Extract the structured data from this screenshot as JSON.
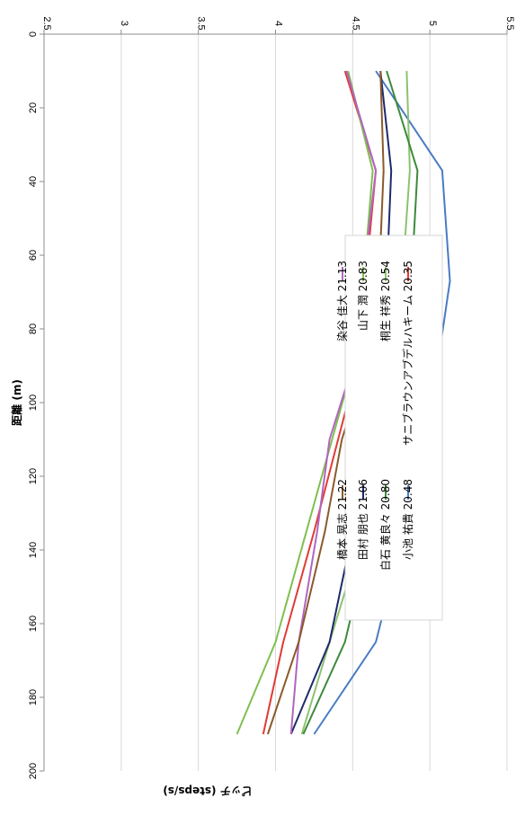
{
  "chart_data": {
    "type": "line",
    "xlabel": "距離 (m)",
    "ylabel": "ピッチ (steps/s)",
    "xlim": [
      0,
      200
    ],
    "ylim": [
      2.5,
      5.5
    ],
    "x_ticks": [
      "0",
      "20",
      "40",
      "60",
      "80",
      "100",
      "120",
      "140",
      "160",
      "180",
      "200"
    ],
    "y_ticks": [
      "2.5",
      "3",
      "3.5",
      "4",
      "4.5",
      "5",
      "5.5"
    ],
    "grid": "horizontal",
    "legend_position": "right",
    "series": [
      {
        "name": "サニブラウンアブデルハキーム 20.35",
        "color": "#e23a36",
        "x": [
          10,
          37,
          90,
          135,
          165,
          190
        ],
        "y": [
          4.45,
          4.65,
          4.53,
          4.25,
          4.05,
          3.92
        ]
      },
      {
        "name": "小池 祐貴 20.48",
        "color": "#4a7bc4",
        "x": [
          10,
          37,
          67,
          90,
          110,
          135,
          165,
          190
        ],
        "y": [
          4.65,
          5.08,
          5.13,
          5.05,
          4.93,
          4.83,
          4.65,
          4.25
        ]
      },
      {
        "name": "桐生 祥秀 20.54",
        "color": "#8dc26f",
        "x": [
          10,
          37,
          67,
          90,
          135,
          165,
          190
        ],
        "y": [
          4.85,
          4.87,
          4.82,
          4.78,
          4.57,
          4.35,
          4.17
        ]
      },
      {
        "name": "白石 黄良々 20.80",
        "color": "#3d8a3c",
        "x": [
          10,
          37,
          67,
          90,
          110,
          135,
          165,
          190
        ],
        "y": [
          4.72,
          4.92,
          4.88,
          4.78,
          4.72,
          4.62,
          4.45,
          4.18
        ]
      },
      {
        "name": "山下 潤 20.83",
        "color": "#7fbf4f",
        "x": [
          10,
          37,
          67,
          90,
          135,
          165,
          190
        ],
        "y": [
          4.47,
          4.63,
          4.57,
          4.5,
          4.2,
          4.0,
          3.75
        ]
      },
      {
        "name": "田村 朋也 21.06",
        "color": "#1e2a6b",
        "x": [
          10,
          37,
          67,
          90,
          110,
          135,
          165,
          190
        ],
        "y": [
          4.68,
          4.75,
          4.72,
          4.68,
          4.55,
          4.5,
          4.35,
          4.1
        ]
      },
      {
        "name": "染谷 佳大 21.13",
        "color": "#b066c0",
        "x": [
          10,
          37,
          90,
          110,
          135,
          165,
          190
        ],
        "y": [
          4.46,
          4.65,
          4.5,
          4.35,
          4.27,
          4.15,
          4.1
        ]
      },
      {
        "name": "橋本 晃志 21.22",
        "color": "#8a5a2b",
        "x": [
          10,
          37,
          67,
          90,
          110,
          135,
          165,
          190
        ],
        "y": [
          4.68,
          4.7,
          4.67,
          4.58,
          4.43,
          4.32,
          4.15,
          3.95
        ]
      }
    ]
  }
}
